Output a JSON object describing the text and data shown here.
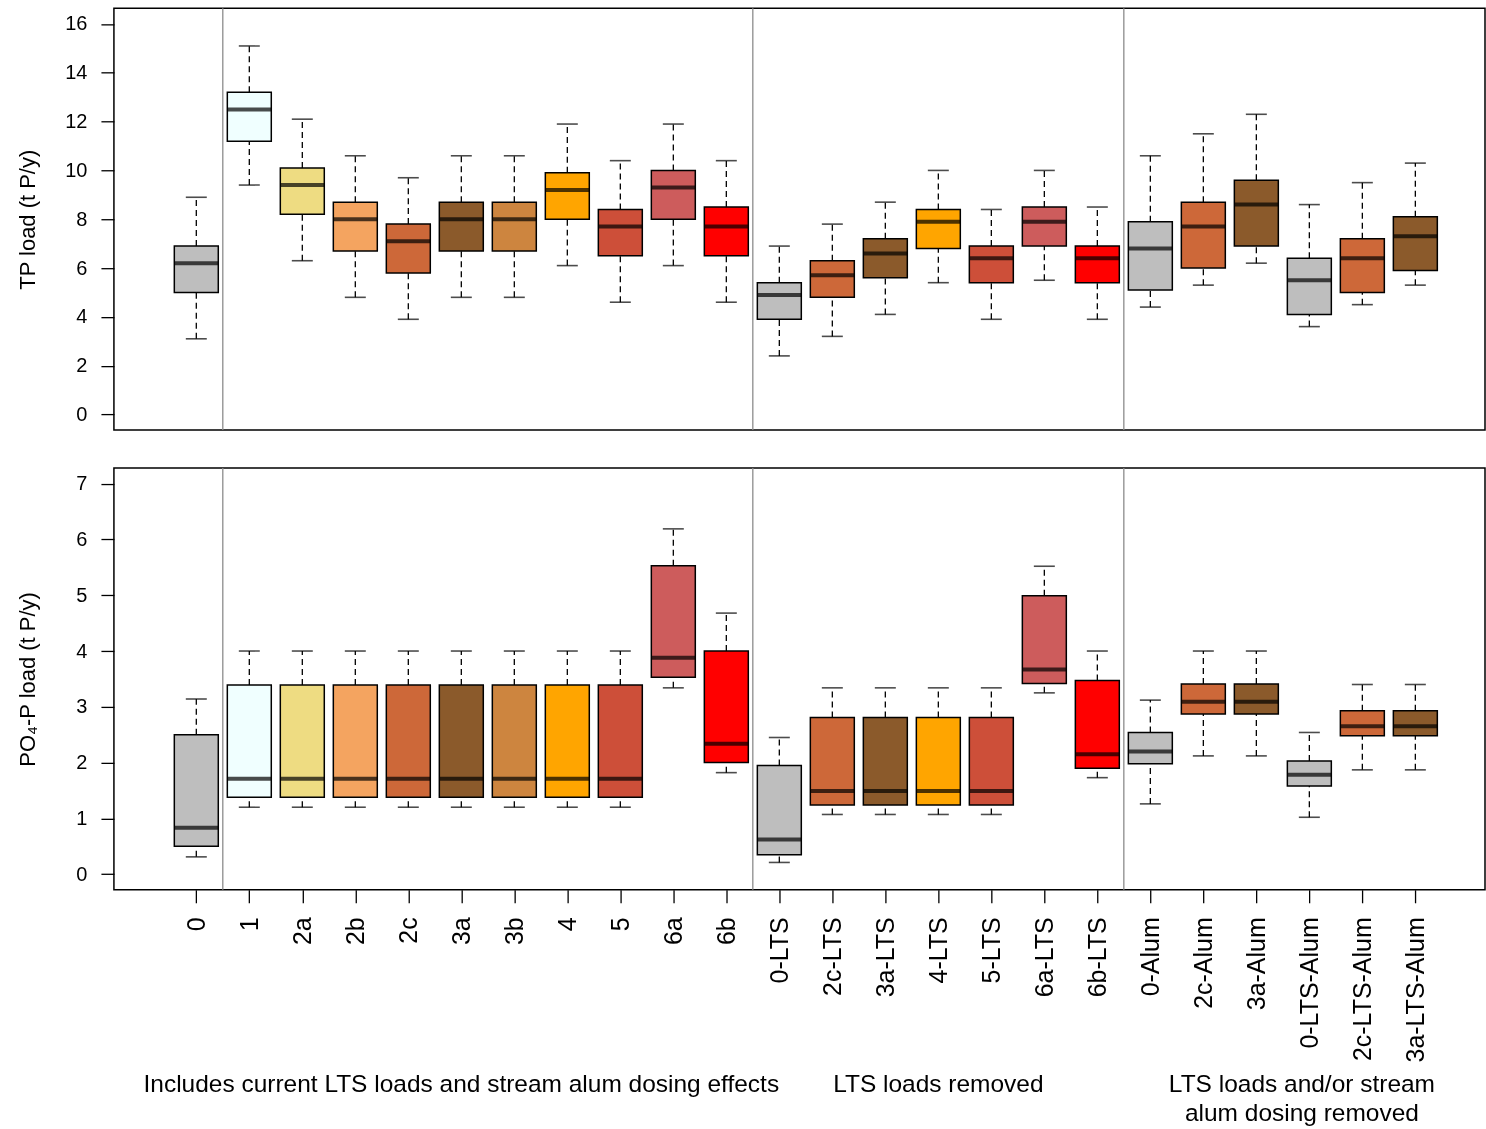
{
  "chart_data": [
    {
      "type": "box",
      "categories": [
        "0",
        "1",
        "2a",
        "2b",
        "2c",
        "3a",
        "3b",
        "4",
        "5",
        "6a",
        "6b",
        "0-LTS",
        "2c-LTS",
        "3a-LTS",
        "4-LTS",
        "5-LTS",
        "6a-LTS",
        "6b-LTS",
        "0-Alum",
        "2c-Alum",
        "3a-Alum",
        "0-LTS-Alum",
        "2c-LTS-Alum",
        "3a-LTS-Alum"
      ],
      "colors": [
        "#bebebe",
        "#f0ffff",
        "#eedc82",
        "#f4a460",
        "#cd6839",
        "#8b5a2b",
        "#cd853f",
        "#ffa500",
        "#cd4f39",
        "#cd5c5c",
        "#ff0000",
        "#bebebe",
        "#cd6839",
        "#8b5a2b",
        "#ffa500",
        "#cd4f39",
        "#cd5c5c",
        "#ff0000",
        "#bebebe",
        "#cd6839",
        "#8b5a2b",
        "#bebebe",
        "#cd6839",
        "#8b5a2b"
      ],
      "boxes": [
        {
          "low": 3.1,
          "q1": 5.0,
          "median": 6.2,
          "q3": 6.9,
          "high": 8.9
        },
        {
          "low": 9.4,
          "q1": 11.2,
          "median": 12.5,
          "q3": 13.2,
          "high": 15.1
        },
        {
          "low": 6.3,
          "q1": 8.2,
          "median": 9.4,
          "q3": 10.1,
          "high": 12.1
        },
        {
          "low": 4.8,
          "q1": 6.7,
          "median": 8.0,
          "q3": 8.7,
          "high": 10.6
        },
        {
          "low": 3.9,
          "q1": 5.8,
          "median": 7.1,
          "q3": 7.8,
          "high": 9.7
        },
        {
          "low": 4.8,
          "q1": 6.7,
          "median": 8.0,
          "q3": 8.7,
          "high": 10.6
        },
        {
          "low": 4.8,
          "q1": 6.7,
          "median": 8.0,
          "q3": 8.7,
          "high": 10.6
        },
        {
          "low": 6.1,
          "q1": 8.0,
          "median": 9.2,
          "q3": 9.9,
          "high": 11.9
        },
        {
          "low": 4.6,
          "q1": 6.5,
          "median": 7.7,
          "q3": 8.4,
          "high": 10.4
        },
        {
          "low": 6.1,
          "q1": 8.0,
          "median": 9.3,
          "q3": 10.0,
          "high": 11.9
        },
        {
          "low": 4.6,
          "q1": 6.5,
          "median": 7.7,
          "q3": 8.5,
          "high": 10.4
        },
        {
          "low": 2.4,
          "q1": 3.9,
          "median": 4.9,
          "q3": 5.4,
          "high": 6.9
        },
        {
          "low": 3.2,
          "q1": 4.8,
          "median": 5.7,
          "q3": 6.3,
          "high": 7.8
        },
        {
          "low": 4.1,
          "q1": 5.6,
          "median": 6.6,
          "q3": 7.2,
          "high": 8.7
        },
        {
          "low": 5.4,
          "q1": 6.8,
          "median": 7.9,
          "q3": 8.4,
          "high": 10.0
        },
        {
          "low": 3.9,
          "q1": 5.4,
          "median": 6.4,
          "q3": 6.9,
          "high": 8.4
        },
        {
          "low": 5.5,
          "q1": 6.9,
          "median": 7.9,
          "q3": 8.5,
          "high": 10.0
        },
        {
          "low": 3.9,
          "q1": 5.4,
          "median": 6.4,
          "q3": 6.9,
          "high": 8.5
        },
        {
          "low": 4.4,
          "q1": 5.1,
          "median": 6.8,
          "q3": 7.9,
          "high": 10.6
        },
        {
          "low": 5.3,
          "q1": 6.0,
          "median": 7.7,
          "q3": 8.7,
          "high": 11.5
        },
        {
          "low": 6.2,
          "q1": 6.9,
          "median": 8.6,
          "q3": 9.6,
          "high": 12.3
        },
        {
          "low": 3.6,
          "q1": 4.1,
          "median": 5.5,
          "q3": 6.4,
          "high": 8.6
        },
        {
          "low": 4.5,
          "q1": 5.0,
          "median": 6.4,
          "q3": 7.2,
          "high": 9.5
        },
        {
          "low": 5.3,
          "q1": 5.9,
          "median": 7.3,
          "q3": 8.1,
          "high": 10.3
        }
      ],
      "ylabel": "TP load (t P/y)",
      "ylim": [
        -0.64,
        16.64
      ],
      "yticks": [
        0,
        2,
        4,
        6,
        8,
        10,
        12,
        14,
        16
      ],
      "tick_labels": "y"
    },
    {
      "type": "box",
      "categories": [
        "0",
        "1",
        "2a",
        "2b",
        "2c",
        "3a",
        "3b",
        "4",
        "5",
        "6a",
        "6b",
        "0-LTS",
        "2c-LTS",
        "3a-LTS",
        "4-LTS",
        "5-LTS",
        "6a-LTS",
        "6b-LTS",
        "0-Alum",
        "2c-Alum",
        "3a-Alum",
        "0-LTS-Alum",
        "2c-LTS-Alum",
        "3a-LTS-Alum"
      ],
      "colors": [
        "#bebebe",
        "#f0ffff",
        "#eedc82",
        "#f4a460",
        "#cd6839",
        "#8b5a2b",
        "#cd853f",
        "#ffa500",
        "#cd4f39",
        "#cd5c5c",
        "#ff0000",
        "#bebebe",
        "#cd6839",
        "#8b5a2b",
        "#ffa500",
        "#cd4f39",
        "#cd5c5c",
        "#ff0000",
        "#bebebe",
        "#cd6839",
        "#8b5a2b",
        "#bebebe",
        "#cd6839",
        "#8b5a2b"
      ],
      "boxes": [
        {
          "low": 0.31,
          "q1": 0.5,
          "median": 0.83,
          "q3": 2.5,
          "high": 3.14
        },
        {
          "low": 1.2,
          "q1": 1.38,
          "median": 1.71,
          "q3": 3.39,
          "high": 4.0
        },
        {
          "low": 1.2,
          "q1": 1.38,
          "median": 1.71,
          "q3": 3.39,
          "high": 4.0
        },
        {
          "low": 1.2,
          "q1": 1.38,
          "median": 1.71,
          "q3": 3.39,
          "high": 4.0
        },
        {
          "low": 1.2,
          "q1": 1.38,
          "median": 1.71,
          "q3": 3.39,
          "high": 4.0
        },
        {
          "low": 1.2,
          "q1": 1.38,
          "median": 1.71,
          "q3": 3.39,
          "high": 4.0
        },
        {
          "low": 1.2,
          "q1": 1.38,
          "median": 1.71,
          "q3": 3.39,
          "high": 4.0
        },
        {
          "low": 1.2,
          "q1": 1.38,
          "median": 1.71,
          "q3": 3.39,
          "high": 4.0
        },
        {
          "low": 1.2,
          "q1": 1.38,
          "median": 1.71,
          "q3": 3.39,
          "high": 4.0
        },
        {
          "low": 3.34,
          "q1": 3.53,
          "median": 3.88,
          "q3": 5.53,
          "high": 6.19
        },
        {
          "low": 1.82,
          "q1": 2.0,
          "median": 2.34,
          "q3": 4.0,
          "high": 4.68
        },
        {
          "low": 0.21,
          "q1": 0.35,
          "median": 0.62,
          "q3": 1.95,
          "high": 2.45
        },
        {
          "low": 1.07,
          "q1": 1.24,
          "median": 1.49,
          "q3": 2.81,
          "high": 3.34
        },
        {
          "low": 1.07,
          "q1": 1.24,
          "median": 1.49,
          "q3": 2.81,
          "high": 3.34
        },
        {
          "low": 1.07,
          "q1": 1.24,
          "median": 1.49,
          "q3": 2.81,
          "high": 3.34
        },
        {
          "low": 1.07,
          "q1": 1.24,
          "median": 1.49,
          "q3": 2.81,
          "high": 3.34
        },
        {
          "low": 3.25,
          "q1": 3.42,
          "median": 3.67,
          "q3": 4.99,
          "high": 5.52
        },
        {
          "low": 1.73,
          "q1": 1.9,
          "median": 2.15,
          "q3": 3.47,
          "high": 4.0
        },
        {
          "low": 1.26,
          "q1": 1.98,
          "median": 2.2,
          "q3": 2.54,
          "high": 3.12
        },
        {
          "low": 2.12,
          "q1": 2.87,
          "median": 3.09,
          "q3": 3.41,
          "high": 4.0
        },
        {
          "low": 2.12,
          "q1": 2.87,
          "median": 3.09,
          "q3": 3.41,
          "high": 4.0
        },
        {
          "low": 1.02,
          "q1": 1.58,
          "median": 1.78,
          "q3": 2.03,
          "high": 2.54
        },
        {
          "low": 1.87,
          "q1": 2.48,
          "median": 2.65,
          "q3": 2.93,
          "high": 3.4
        },
        {
          "low": 1.87,
          "q1": 2.48,
          "median": 2.65,
          "q3": 2.93,
          "high": 3.4
        }
      ],
      "ylabel": "PO₄-P load (t P/y)",
      "ylim": [
        -0.28,
        7.28
      ],
      "yticks": [
        0,
        1,
        2,
        3,
        4,
        5,
        6,
        7
      ],
      "annotations": [
        "Includes current LTS loads and stream alum dosing effects",
        "LTS loads removed",
        "LTS loads and/or stream alum dosing removed"
      ]
    }
  ]
}
